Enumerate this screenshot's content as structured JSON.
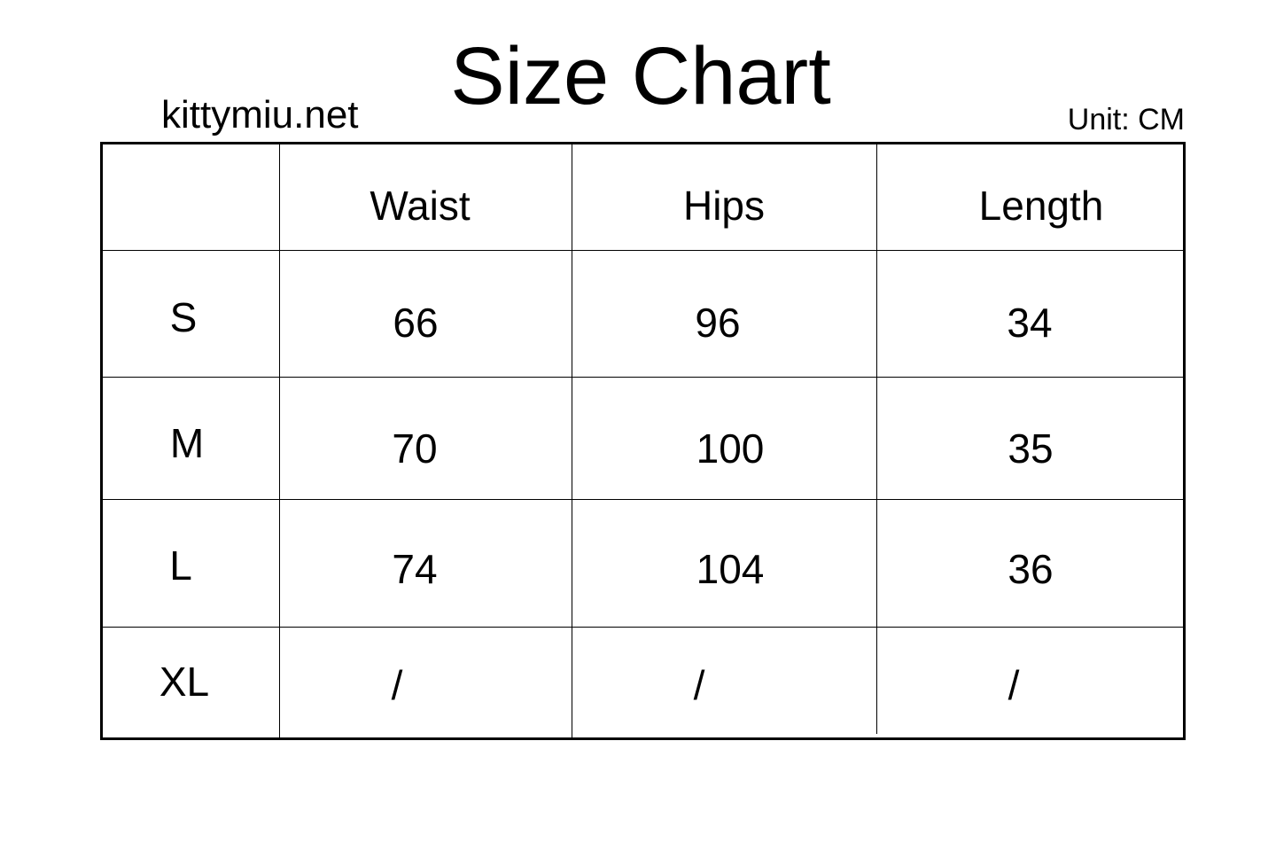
{
  "title": "Size Chart",
  "brand": "kittymiu.net",
  "unit": "Unit: CM",
  "table": {
    "headers": [
      "",
      "Waist",
      "Hips",
      "Length"
    ],
    "rows": [
      {
        "size": "S",
        "waist": "66",
        "hips": "96",
        "length": "34"
      },
      {
        "size": "M",
        "waist": "70",
        "hips": "100",
        "length": "35"
      },
      {
        "size": "L",
        "waist": "74",
        "hips": "104",
        "length": "36"
      },
      {
        "size": "XL",
        "waist": "/",
        "hips": "/",
        "length": "/"
      }
    ]
  }
}
